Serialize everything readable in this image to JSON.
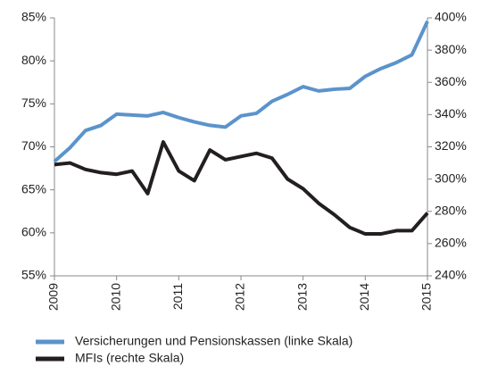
{
  "chart_data": {
    "type": "line",
    "x": [
      2009,
      2009.25,
      2009.5,
      2009.75,
      2010,
      2010.25,
      2010.5,
      2010.75,
      2011,
      2011.25,
      2011.5,
      2011.75,
      2012,
      2012.25,
      2012.5,
      2012.75,
      2013,
      2013.25,
      2013.5,
      2013.75,
      2014,
      2014.25,
      2014.5,
      2014.75,
      2015
    ],
    "xlim": [
      2009,
      2015
    ],
    "xticks": [
      2009,
      2010,
      2011,
      2012,
      2013,
      2014,
      2015
    ],
    "ylim": [
      55,
      85
    ],
    "yticks": [
      {
        "value": 55,
        "label": "55%"
      },
      {
        "value": 60,
        "label": "60%"
      },
      {
        "value": 65,
        "label": "65%"
      },
      {
        "value": 70,
        "label": "70%"
      },
      {
        "value": 75,
        "label": "75%"
      },
      {
        "value": 80,
        "label": "80%"
      },
      {
        "value": 85,
        "label": "85%"
      }
    ],
    "y2lim": [
      240,
      400
    ],
    "y2ticks": [
      {
        "value": 240,
        "label": "240%"
      },
      {
        "value": 260,
        "label": "260%"
      },
      {
        "value": 280,
        "label": "280%"
      },
      {
        "value": 300,
        "label": "300%"
      },
      {
        "value": 320,
        "label": "320%"
      },
      {
        "value": 340,
        "label": "340%"
      },
      {
        "value": 360,
        "label": "360%"
      },
      {
        "value": 380,
        "label": "380%"
      },
      {
        "value": 400,
        "label": "400%"
      }
    ],
    "series": [
      {
        "name": "Versicherungen und Pensionskassen (linke Skala)",
        "color": "#5b93cc",
        "values": [
          68.3,
          69.9,
          71.9,
          72.5,
          73.8,
          73.7,
          73.6,
          74.0,
          73.4,
          72.9,
          72.5,
          72.3,
          73.6,
          73.9,
          75.3,
          76.1,
          77.0,
          76.5,
          76.7,
          76.8,
          78.2,
          79.1,
          79.8,
          80.7,
          84.6
        ]
      },
      {
        "name": "MFIs (rechte Skala)",
        "color": "#231f20",
        "axis": "y2",
        "values": [
          309,
          310,
          306,
          304,
          303,
          305,
          291,
          323,
          305,
          299,
          318,
          312,
          314,
          316,
          313,
          300,
          294,
          285,
          278,
          270,
          266,
          266,
          268,
          268,
          279
        ]
      }
    ]
  }
}
